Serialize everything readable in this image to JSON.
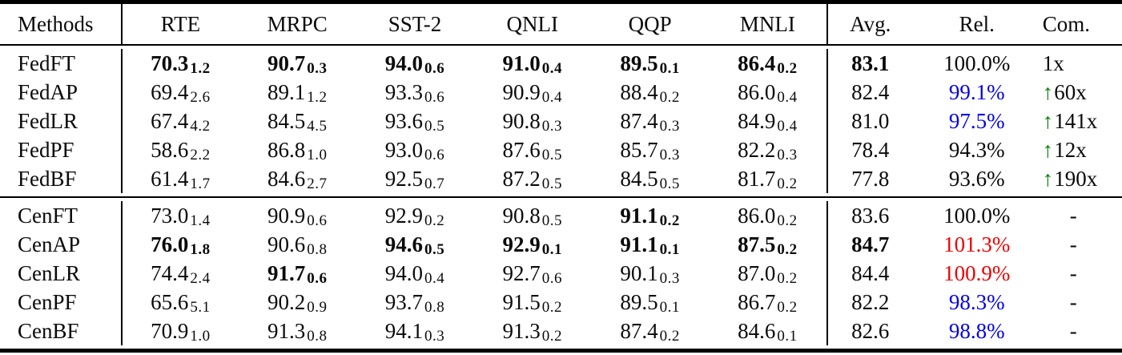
{
  "columns": [
    "Methods",
    "RTE",
    "MRPC",
    "SST-2",
    "QNLI",
    "QQP",
    "MNLI",
    "Avg.",
    "Rel.",
    "Com."
  ],
  "colors": {
    "blue": "#0000ee",
    "red": "#ee0000",
    "green": "#007d00",
    "text": "#0a0a0a"
  },
  "icons": {
    "up_arrow": "↑"
  },
  "sections": [
    {
      "name": "federated-methods",
      "rows": [
        {
          "method": "FedFT",
          "scores": [
            {
              "v": "70.3",
              "sub": "1.2",
              "bold": true
            },
            {
              "v": "90.7",
              "sub": "0.3",
              "bold": true
            },
            {
              "v": "94.0",
              "sub": "0.6",
              "bold": true
            },
            {
              "v": "91.0",
              "sub": "0.4",
              "bold": true
            },
            {
              "v": "89.5",
              "sub": "0.1",
              "bold": true
            },
            {
              "v": "86.4",
              "sub": "0.2",
              "bold": true
            }
          ],
          "avg": {
            "v": "83.1",
            "bold": true
          },
          "rel": {
            "v": "100.0%",
            "color": "text"
          },
          "com": {
            "v": "1x",
            "up": false
          }
        },
        {
          "method": "FedAP",
          "scores": [
            {
              "v": "69.4",
              "sub": "2.6",
              "bold": false
            },
            {
              "v": "89.1",
              "sub": "1.2",
              "bold": false
            },
            {
              "v": "93.3",
              "sub": "0.6",
              "bold": false
            },
            {
              "v": "90.9",
              "sub": "0.4",
              "bold": false
            },
            {
              "v": "88.4",
              "sub": "0.2",
              "bold": false
            },
            {
              "v": "86.0",
              "sub": "0.4",
              "bold": false
            }
          ],
          "avg": {
            "v": "82.4",
            "bold": false
          },
          "rel": {
            "v": "99.1%",
            "color": "blue"
          },
          "com": {
            "v": "60x",
            "up": true
          }
        },
        {
          "method": "FedLR",
          "scores": [
            {
              "v": "67.4",
              "sub": "4.2",
              "bold": false
            },
            {
              "v": "84.5",
              "sub": "4.5",
              "bold": false
            },
            {
              "v": "93.6",
              "sub": "0.5",
              "bold": false
            },
            {
              "v": "90.8",
              "sub": "0.3",
              "bold": false
            },
            {
              "v": "87.4",
              "sub": "0.3",
              "bold": false
            },
            {
              "v": "84.9",
              "sub": "0.4",
              "bold": false
            }
          ],
          "avg": {
            "v": "81.0",
            "bold": false
          },
          "rel": {
            "v": "97.5%",
            "color": "blue"
          },
          "com": {
            "v": "141x",
            "up": true
          }
        },
        {
          "method": "FedPF",
          "scores": [
            {
              "v": "58.6",
              "sub": "2.2",
              "bold": false
            },
            {
              "v": "86.8",
              "sub": "1.0",
              "bold": false
            },
            {
              "v": "93.0",
              "sub": "0.6",
              "bold": false
            },
            {
              "v": "87.6",
              "sub": "0.5",
              "bold": false
            },
            {
              "v": "85.7",
              "sub": "0.3",
              "bold": false
            },
            {
              "v": "82.2",
              "sub": "0.3",
              "bold": false
            }
          ],
          "avg": {
            "v": "78.4",
            "bold": false
          },
          "rel": {
            "v": "94.3%",
            "color": "text"
          },
          "com": {
            "v": "12x",
            "up": true
          }
        },
        {
          "method": "FedBF",
          "scores": [
            {
              "v": "61.4",
              "sub": "1.7",
              "bold": false
            },
            {
              "v": "84.6",
              "sub": "2.7",
              "bold": false
            },
            {
              "v": "92.5",
              "sub": "0.7",
              "bold": false
            },
            {
              "v": "87.2",
              "sub": "0.5",
              "bold": false
            },
            {
              "v": "84.5",
              "sub": "0.5",
              "bold": false
            },
            {
              "v": "81.7",
              "sub": "0.2",
              "bold": false
            }
          ],
          "avg": {
            "v": "77.8",
            "bold": false
          },
          "rel": {
            "v": "93.6%",
            "color": "text"
          },
          "com": {
            "v": "190x",
            "up": true
          }
        }
      ]
    },
    {
      "name": "centralized-methods",
      "rows": [
        {
          "method": "CenFT",
          "scores": [
            {
              "v": "73.0",
              "sub": "1.4",
              "bold": false
            },
            {
              "v": "90.9",
              "sub": "0.6",
              "bold": false
            },
            {
              "v": "92.9",
              "sub": "0.2",
              "bold": false
            },
            {
              "v": "90.8",
              "sub": "0.5",
              "bold": false
            },
            {
              "v": "91.1",
              "sub": "0.2",
              "bold": true
            },
            {
              "v": "86.0",
              "sub": "0.2",
              "bold": false
            }
          ],
          "avg": {
            "v": "83.6",
            "bold": false
          },
          "rel": {
            "v": "100.0%",
            "color": "text"
          },
          "com": {
            "v": "-",
            "up": false
          }
        },
        {
          "method": "CenAP",
          "scores": [
            {
              "v": "76.0",
              "sub": "1.8",
              "bold": true
            },
            {
              "v": "90.6",
              "sub": "0.8",
              "bold": false
            },
            {
              "v": "94.6",
              "sub": "0.5",
              "bold": true
            },
            {
              "v": "92.9",
              "sub": "0.1",
              "bold": true
            },
            {
              "v": "91.1",
              "sub": "0.1",
              "bold": true
            },
            {
              "v": "87.5",
              "sub": "0.2",
              "bold": true
            }
          ],
          "avg": {
            "v": "84.7",
            "bold": true
          },
          "rel": {
            "v": "101.3%",
            "color": "red"
          },
          "com": {
            "v": "-",
            "up": false
          }
        },
        {
          "method": "CenLR",
          "scores": [
            {
              "v": "74.4",
              "sub": "2.4",
              "bold": false
            },
            {
              "v": "91.7",
              "sub": "0.6",
              "bold": true
            },
            {
              "v": "94.0",
              "sub": "0.4",
              "bold": false
            },
            {
              "v": "92.7",
              "sub": "0.6",
              "bold": false
            },
            {
              "v": "90.1",
              "sub": "0.3",
              "bold": false
            },
            {
              "v": "87.0",
              "sub": "0.2",
              "bold": false
            }
          ],
          "avg": {
            "v": "84.4",
            "bold": false
          },
          "rel": {
            "v": "100.9%",
            "color": "red"
          },
          "com": {
            "v": "-",
            "up": false
          }
        },
        {
          "method": "CenPF",
          "scores": [
            {
              "v": "65.6",
              "sub": "5.1",
              "bold": false
            },
            {
              "v": "90.2",
              "sub": "0.9",
              "bold": false
            },
            {
              "v": "93.7",
              "sub": "0.8",
              "bold": false
            },
            {
              "v": "91.5",
              "sub": "0.2",
              "bold": false
            },
            {
              "v": "89.5",
              "sub": "0.1",
              "bold": false
            },
            {
              "v": "86.7",
              "sub": "0.2",
              "bold": false
            }
          ],
          "avg": {
            "v": "82.2",
            "bold": false
          },
          "rel": {
            "v": "98.3%",
            "color": "blue"
          },
          "com": {
            "v": "-",
            "up": false
          }
        },
        {
          "method": "CenBF",
          "scores": [
            {
              "v": "70.9",
              "sub": "1.0",
              "bold": false
            },
            {
              "v": "91.3",
              "sub": "0.8",
              "bold": false
            },
            {
              "v": "94.1",
              "sub": "0.3",
              "bold": false
            },
            {
              "v": "91.3",
              "sub": "0.2",
              "bold": false
            },
            {
              "v": "87.4",
              "sub": "0.2",
              "bold": false
            },
            {
              "v": "84.6",
              "sub": "0.1",
              "bold": false
            }
          ],
          "avg": {
            "v": "82.6",
            "bold": false
          },
          "rel": {
            "v": "98.8%",
            "color": "blue"
          },
          "com": {
            "v": "-",
            "up": false
          }
        }
      ]
    }
  ]
}
